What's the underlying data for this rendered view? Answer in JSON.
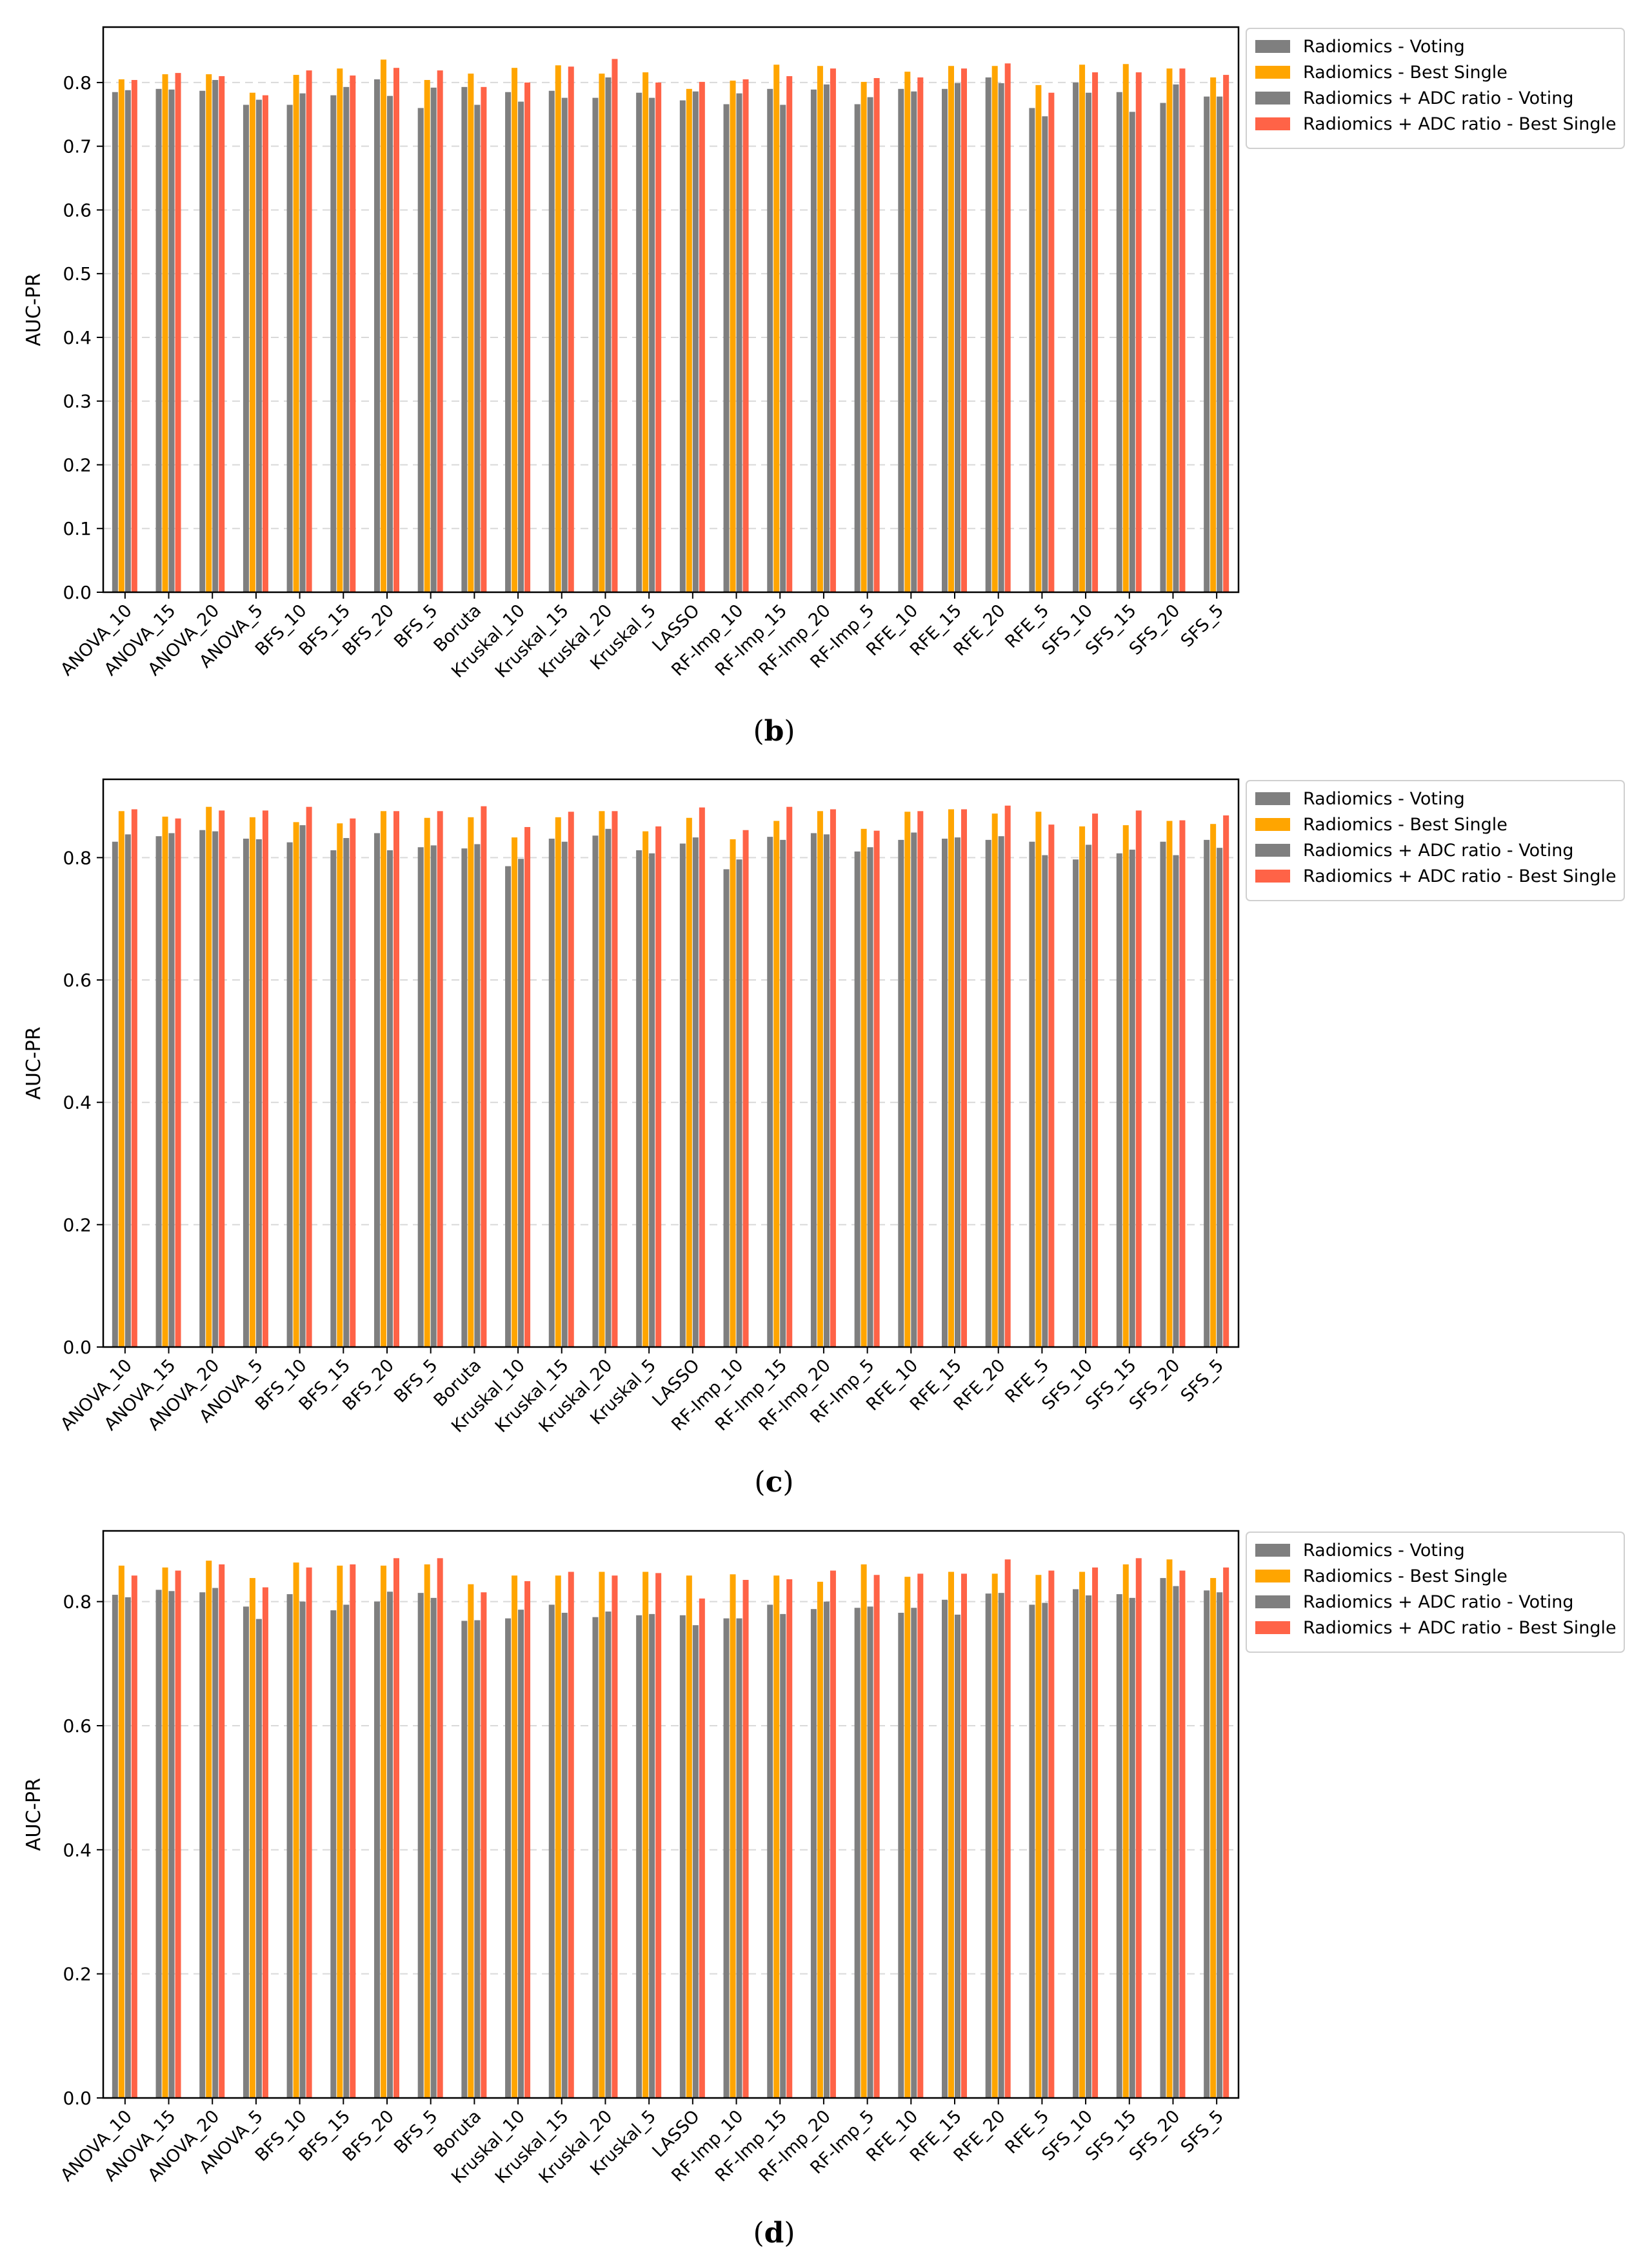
{
  "colors": {
    "voting": "#7f7f7f",
    "best_single": "#ffa500",
    "adc_voting": "#7f7f7f",
    "adc_best_single": "#ff6347",
    "grid": "#d9d9d9",
    "axis": "#000000"
  },
  "legend_labels": [
    "Radiomics - Voting",
    "Radiomics - Best Single",
    "Radiomics + ADC ratio - Voting",
    "Radiomics + ADC ratio - Best Single"
  ],
  "chart_data": [
    {
      "type": "bar",
      "panel_label": "b",
      "ylabel": "AUC-PR",
      "xlabel": "",
      "ylim": [
        0.0,
        0.887
      ],
      "yticks": [
        "0.0",
        "0.1",
        "0.2",
        "0.3",
        "0.4",
        "0.5",
        "0.6",
        "0.7",
        "0.8"
      ],
      "ytick_values": [
        0.0,
        0.1,
        0.2,
        0.3,
        0.4,
        0.5,
        0.6,
        0.7,
        0.8
      ],
      "grid": true,
      "legend_position": "outside-top-right",
      "categories": [
        "ANOVA_10",
        "ANOVA_15",
        "ANOVA_20",
        "ANOVA_5",
        "BFS_10",
        "BFS_15",
        "BFS_20",
        "BFS_5",
        "Boruta",
        "Kruskal_10",
        "Kruskal_15",
        "Kruskal_20",
        "Kruskal_5",
        "LASSO",
        "RF-Imp_10",
        "RF-Imp_15",
        "RF-Imp_20",
        "RF-Imp_5",
        "RFE_10",
        "RFE_15",
        "RFE_20",
        "RFE_5",
        "SFS_10",
        "SFS_15",
        "SFS_20",
        "SFS_5"
      ],
      "series": [
        {
          "name": "Radiomics - Voting",
          "values": [
            0.785,
            0.79,
            0.787,
            0.765,
            0.765,
            0.78,
            0.805,
            0.76,
            0.793,
            0.785,
            0.787,
            0.776,
            0.784,
            0.772,
            0.766,
            0.79,
            0.789,
            0.766,
            0.79,
            0.79,
            0.808,
            0.76,
            0.8,
            0.785,
            0.768,
            0.778
          ]
        },
        {
          "name": "Radiomics - Best Single",
          "values": [
            0.805,
            0.813,
            0.813,
            0.784,
            0.812,
            0.822,
            0.836,
            0.804,
            0.814,
            0.823,
            0.827,
            0.814,
            0.816,
            0.79,
            0.803,
            0.828,
            0.826,
            0.801,
            0.817,
            0.826,
            0.826,
            0.796,
            0.828,
            0.829,
            0.822,
            0.808
          ]
        },
        {
          "name": "Radiomics + ADC ratio - Voting",
          "values": [
            0.788,
            0.789,
            0.804,
            0.773,
            0.783,
            0.793,
            0.779,
            0.792,
            0.765,
            0.77,
            0.776,
            0.808,
            0.776,
            0.786,
            0.783,
            0.765,
            0.797,
            0.777,
            0.786,
            0.799,
            0.799,
            0.747,
            0.784,
            0.754,
            0.797,
            0.778
          ]
        },
        {
          "name": "Radiomics + ADC ratio - Best Single",
          "values": [
            0.804,
            0.815,
            0.81,
            0.78,
            0.819,
            0.811,
            0.823,
            0.819,
            0.793,
            0.8,
            0.825,
            0.837,
            0.8,
            0.801,
            0.805,
            0.81,
            0.822,
            0.807,
            0.808,
            0.822,
            0.83,
            0.784,
            0.816,
            0.816,
            0.822,
            0.812
          ]
        }
      ]
    },
    {
      "type": "bar",
      "panel_label": "c",
      "ylabel": "AUC-PR",
      "xlabel": "",
      "ylim": [
        0.0,
        0.928
      ],
      "yticks": [
        "0.0",
        "0.2",
        "0.4",
        "0.6",
        "0.8"
      ],
      "ytick_values": [
        0.0,
        0.2,
        0.4,
        0.6,
        0.8
      ],
      "grid": true,
      "legend_position": "outside-top-right",
      "categories": [
        "ANOVA_10",
        "ANOVA_15",
        "ANOVA_20",
        "ANOVA_5",
        "BFS_10",
        "BFS_15",
        "BFS_20",
        "BFS_5",
        "Boruta",
        "Kruskal_10",
        "Kruskal_15",
        "Kruskal_20",
        "Kruskal_5",
        "LASSO",
        "RF-Imp_10",
        "RF-Imp_15",
        "RF-Imp_20",
        "RF-Imp_5",
        "RFE_10",
        "RFE_15",
        "RFE_20",
        "RFE_5",
        "SFS_10",
        "SFS_15",
        "SFS_20",
        "SFS_5"
      ],
      "series": [
        {
          "name": "Radiomics - Voting",
          "values": [
            0.826,
            0.835,
            0.845,
            0.831,
            0.825,
            0.812,
            0.84,
            0.817,
            0.815,
            0.786,
            0.831,
            0.836,
            0.812,
            0.823,
            0.781,
            0.834,
            0.84,
            0.81,
            0.829,
            0.831,
            0.829,
            0.826,
            0.797,
            0.807,
            0.826,
            0.829
          ]
        },
        {
          "name": "Radiomics - Best Single",
          "values": [
            0.876,
            0.867,
            0.883,
            0.866,
            0.858,
            0.856,
            0.876,
            0.865,
            0.866,
            0.833,
            0.866,
            0.876,
            0.843,
            0.865,
            0.83,
            0.86,
            0.876,
            0.847,
            0.875,
            0.879,
            0.872,
            0.875,
            0.851,
            0.853,
            0.86,
            0.855
          ]
        },
        {
          "name": "Radiomics + ADC ratio - Voting",
          "values": [
            0.838,
            0.84,
            0.843,
            0.83,
            0.853,
            0.832,
            0.812,
            0.82,
            0.822,
            0.798,
            0.826,
            0.847,
            0.807,
            0.833,
            0.797,
            0.829,
            0.838,
            0.817,
            0.841,
            0.833,
            0.835,
            0.804,
            0.821,
            0.813,
            0.804,
            0.816
          ]
        },
        {
          "name": "Radiomics + ADC ratio - Best Single",
          "values": [
            0.879,
            0.864,
            0.877,
            0.877,
            0.883,
            0.864,
            0.876,
            0.876,
            0.884,
            0.85,
            0.875,
            0.876,
            0.851,
            0.882,
            0.845,
            0.883,
            0.879,
            0.844,
            0.876,
            0.879,
            0.885,
            0.854,
            0.872,
            0.877,
            0.861,
            0.869
          ]
        }
      ]
    },
    {
      "type": "bar",
      "panel_label": "d",
      "ylabel": "AUC-PR",
      "xlabel": "",
      "ylim": [
        0.0,
        0.914
      ],
      "yticks": [
        "0.0",
        "0.2",
        "0.4",
        "0.6",
        "0.8"
      ],
      "ytick_values": [
        0.0,
        0.2,
        0.4,
        0.6,
        0.8
      ],
      "grid": true,
      "legend_position": "outside-top-right",
      "categories": [
        "ANOVA_10",
        "ANOVA_15",
        "ANOVA_20",
        "ANOVA_5",
        "BFS_10",
        "BFS_15",
        "BFS_20",
        "BFS_5",
        "Boruta",
        "Kruskal_10",
        "Kruskal_15",
        "Kruskal_20",
        "Kruskal_5",
        "LASSO",
        "RF-Imp_10",
        "RF-Imp_15",
        "RF-Imp_20",
        "RF-Imp_5",
        "RFE_10",
        "RFE_15",
        "RFE_20",
        "RFE_5",
        "SFS_10",
        "SFS_15",
        "SFS_20",
        "SFS_5"
      ],
      "series": [
        {
          "name": "Radiomics - Voting",
          "values": [
            0.811,
            0.819,
            0.815,
            0.792,
            0.812,
            0.786,
            0.8,
            0.814,
            0.769,
            0.773,
            0.795,
            0.775,
            0.778,
            0.778,
            0.773,
            0.795,
            0.788,
            0.79,
            0.782,
            0.803,
            0.813,
            0.795,
            0.82,
            0.812,
            0.838,
            0.818
          ]
        },
        {
          "name": "Radiomics - Best Single",
          "values": [
            0.858,
            0.855,
            0.866,
            0.838,
            0.863,
            0.858,
            0.858,
            0.86,
            0.828,
            0.842,
            0.842,
            0.848,
            0.848,
            0.842,
            0.844,
            0.842,
            0.832,
            0.86,
            0.84,
            0.848,
            0.845,
            0.843,
            0.848,
            0.86,
            0.868,
            0.838
          ]
        },
        {
          "name": "Radiomics + ADC ratio - Voting",
          "values": [
            0.807,
            0.817,
            0.822,
            0.772,
            0.8,
            0.795,
            0.816,
            0.806,
            0.77,
            0.787,
            0.782,
            0.784,
            0.78,
            0.762,
            0.773,
            0.78,
            0.8,
            0.792,
            0.79,
            0.779,
            0.814,
            0.798,
            0.81,
            0.806,
            0.825,
            0.815
          ]
        },
        {
          "name": "Radiomics + ADC ratio - Best Single",
          "values": [
            0.842,
            0.85,
            0.86,
            0.823,
            0.855,
            0.86,
            0.87,
            0.87,
            0.815,
            0.833,
            0.848,
            0.842,
            0.846,
            0.805,
            0.835,
            0.836,
            0.85,
            0.843,
            0.845,
            0.845,
            0.868,
            0.85,
            0.855,
            0.87,
            0.85,
            0.855
          ]
        }
      ]
    }
  ]
}
